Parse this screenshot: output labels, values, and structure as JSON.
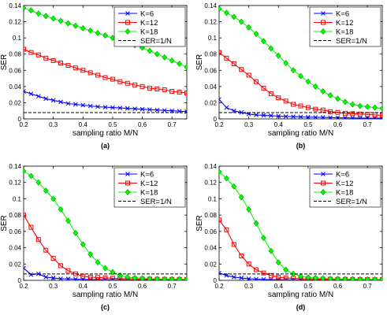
{
  "chart_data": [
    {
      "type": "line",
      "caption": "(a)",
      "xlabel": "sampling ratio M/N",
      "ylabel": "SER",
      "xlim": [
        0.2,
        0.75
      ],
      "ylim": [
        0,
        0.14
      ],
      "xticks": [
        "0.2",
        "0.3",
        "0.4",
        "0.5",
        "0.6",
        "0.7"
      ],
      "yticks": [
        "0",
        "0.02",
        "0.04",
        "0.06",
        "0.08",
        "0.1",
        "0.12",
        "0.14"
      ],
      "legend_position": "top-right",
      "series": [
        {
          "name": "K=6",
          "marker": "x",
          "color": "#0000ff",
          "x": [
            0.2,
            0.225,
            0.25,
            0.275,
            0.3,
            0.325,
            0.35,
            0.375,
            0.4,
            0.425,
            0.45,
            0.475,
            0.5,
            0.525,
            0.55,
            0.575,
            0.6,
            0.625,
            0.65,
            0.675,
            0.7,
            0.725,
            0.75
          ],
          "y": [
            0.034,
            0.031,
            0.028,
            0.025,
            0.023,
            0.021,
            0.019,
            0.018,
            0.017,
            0.016,
            0.015,
            0.0145,
            0.014,
            0.0135,
            0.013,
            0.0125,
            0.012,
            0.0115,
            0.011,
            0.0105,
            0.01,
            0.0095,
            0.009
          ]
        },
        {
          "name": "K=12",
          "marker": "square",
          "color": "#ff0000",
          "x": [
            0.2,
            0.225,
            0.25,
            0.275,
            0.3,
            0.325,
            0.35,
            0.375,
            0.4,
            0.425,
            0.45,
            0.475,
            0.5,
            0.525,
            0.55,
            0.575,
            0.6,
            0.625,
            0.65,
            0.675,
            0.7,
            0.725,
            0.75
          ],
          "y": [
            0.086,
            0.082,
            0.079,
            0.075,
            0.072,
            0.069,
            0.066,
            0.063,
            0.06,
            0.057,
            0.054,
            0.051,
            0.049,
            0.046,
            0.044,
            0.042,
            0.04,
            0.038,
            0.037,
            0.036,
            0.034,
            0.033,
            0.032
          ]
        },
        {
          "name": "K=18",
          "marker": "diamond",
          "color": "#00ff00",
          "x": [
            0.2,
            0.225,
            0.25,
            0.275,
            0.3,
            0.325,
            0.35,
            0.375,
            0.4,
            0.425,
            0.45,
            0.475,
            0.5,
            0.525,
            0.55,
            0.575,
            0.6,
            0.625,
            0.65,
            0.675,
            0.7,
            0.725,
            0.75
          ],
          "y": [
            0.137,
            0.134,
            0.13,
            0.127,
            0.124,
            0.121,
            0.118,
            0.115,
            0.112,
            0.109,
            0.106,
            0.103,
            0.1,
            0.097,
            0.094,
            0.091,
            0.088,
            0.084,
            0.08,
            0.076,
            0.072,
            0.068,
            0.064
          ]
        },
        {
          "name": "SER=1/N",
          "marker": "none",
          "color": "#000000",
          "dashed": true,
          "x": [
            0.2,
            0.75
          ],
          "y": [
            0.0078,
            0.0078
          ]
        }
      ]
    },
    {
      "type": "line",
      "caption": "(b)",
      "xlabel": "sampling ratio M/N",
      "ylabel": "SER",
      "xlim": [
        0.2,
        0.75
      ],
      "ylim": [
        0,
        0.14
      ],
      "xticks": [
        "0.2",
        "0.3",
        "0.4",
        "0.5",
        "0.6",
        "0.7"
      ],
      "yticks": [
        "0",
        "0.02",
        "0.04",
        "0.06",
        "0.08",
        "0.1",
        "0.12",
        "0.14"
      ],
      "legend_position": "top-right",
      "series": [
        {
          "name": "K=6",
          "marker": "x",
          "color": "#0000ff",
          "x": [
            0.2,
            0.225,
            0.25,
            0.275,
            0.3,
            0.325,
            0.35,
            0.375,
            0.4,
            0.425,
            0.45,
            0.475,
            0.5,
            0.525,
            0.55,
            0.575,
            0.6,
            0.625,
            0.65,
            0.675,
            0.7,
            0.725,
            0.75
          ],
          "y": [
            0.024,
            0.014,
            0.01,
            0.008,
            0.006,
            0.005,
            0.0045,
            0.004,
            0.0035,
            0.003,
            0.0028,
            0.0025,
            0.0022,
            0.002,
            0.0018,
            0.0016,
            0.0015,
            0.0013,
            0.0012,
            0.0011,
            0.001,
            0.001,
            0.0009
          ]
        },
        {
          "name": "K=12",
          "marker": "square",
          "color": "#ff0000",
          "x": [
            0.2,
            0.225,
            0.25,
            0.275,
            0.3,
            0.325,
            0.35,
            0.375,
            0.4,
            0.425,
            0.45,
            0.475,
            0.5,
            0.525,
            0.55,
            0.575,
            0.6,
            0.625,
            0.65,
            0.675,
            0.7,
            0.725,
            0.75
          ],
          "y": [
            0.082,
            0.075,
            0.068,
            0.061,
            0.054,
            0.046,
            0.038,
            0.031,
            0.026,
            0.022,
            0.018,
            0.016,
            0.014,
            0.012,
            0.011,
            0.009,
            0.008,
            0.007,
            0.0065,
            0.006,
            0.0055,
            0.005,
            0.0045
          ]
        },
        {
          "name": "K=18",
          "marker": "diamond",
          "color": "#00ff00",
          "x": [
            0.2,
            0.225,
            0.25,
            0.275,
            0.3,
            0.325,
            0.35,
            0.375,
            0.4,
            0.425,
            0.45,
            0.475,
            0.5,
            0.525,
            0.55,
            0.575,
            0.6,
            0.625,
            0.65,
            0.675,
            0.7,
            0.725,
            0.75
          ],
          "y": [
            0.136,
            0.131,
            0.126,
            0.12,
            0.113,
            0.105,
            0.096,
            0.087,
            0.078,
            0.069,
            0.06,
            0.053,
            0.046,
            0.04,
            0.034,
            0.029,
            0.025,
            0.021,
            0.018,
            0.016,
            0.015,
            0.014,
            0.013
          ]
        },
        {
          "name": "SER=1/N",
          "marker": "none",
          "color": "#000000",
          "dashed": true,
          "x": [
            0.2,
            0.75
          ],
          "y": [
            0.0078,
            0.0078
          ]
        }
      ]
    },
    {
      "type": "line",
      "caption": "(c)",
      "xlabel": "sampling ratio M/N",
      "ylabel": "SER",
      "xlim": [
        0.2,
        0.75
      ],
      "ylim": [
        0,
        0.14
      ],
      "xticks": [
        "0.2",
        "0.3",
        "0.4",
        "0.5",
        "0.6",
        "0.7"
      ],
      "yticks": [
        "0",
        "0.02",
        "0.04",
        "0.06",
        "0.08",
        "0.1",
        "0.12",
        "0.14"
      ],
      "legend_position": "top-right",
      "series": [
        {
          "name": "K=6",
          "marker": "x",
          "color": "#0000ff",
          "x": [
            0.2,
            0.225,
            0.25,
            0.275,
            0.3,
            0.325,
            0.35,
            0.375,
            0.4,
            0.425,
            0.45,
            0.475,
            0.5,
            0.525,
            0.55,
            0.575,
            0.6,
            0.625,
            0.65,
            0.675,
            0.7,
            0.725,
            0.75
          ],
          "y": [
            0.015,
            0.007,
            0.008,
            0.004,
            0.003,
            0.002,
            0.0018,
            0.0015,
            0.0012,
            0.001,
            0.0009,
            0.0008,
            0.0007,
            0.0006,
            0.0005,
            0.0005,
            0.0004,
            0.0004,
            0.0003,
            0.0003,
            0.0003,
            0.0002,
            0.0002
          ]
        },
        {
          "name": "K=12",
          "marker": "square",
          "color": "#ff0000",
          "x": [
            0.2,
            0.225,
            0.25,
            0.275,
            0.3,
            0.325,
            0.35,
            0.375,
            0.4,
            0.425,
            0.45,
            0.475,
            0.5,
            0.525,
            0.55,
            0.575,
            0.6,
            0.625,
            0.65,
            0.675,
            0.7,
            0.725,
            0.75
          ],
          "y": [
            0.08,
            0.065,
            0.05,
            0.037,
            0.027,
            0.018,
            0.012,
            0.008,
            0.005,
            0.004,
            0.0035,
            0.003,
            0.0025,
            0.002,
            0.002,
            0.0018,
            0.0016,
            0.0015,
            0.0014,
            0.0013,
            0.0012,
            0.0012,
            0.0011
          ]
        },
        {
          "name": "K=18",
          "marker": "diamond",
          "color": "#00ff00",
          "x": [
            0.2,
            0.225,
            0.25,
            0.275,
            0.3,
            0.325,
            0.35,
            0.375,
            0.4,
            0.425,
            0.45,
            0.475,
            0.5,
            0.525,
            0.55,
            0.575,
            0.6,
            0.625,
            0.65,
            0.675,
            0.7,
            0.725,
            0.75
          ],
          "y": [
            0.134,
            0.128,
            0.12,
            0.11,
            0.1,
            0.087,
            0.073,
            0.058,
            0.044,
            0.032,
            0.022,
            0.015,
            0.01,
            0.006,
            0.004,
            0.003,
            0.0025,
            0.002,
            0.0018,
            0.0016,
            0.0015,
            0.0014,
            0.0013
          ]
        },
        {
          "name": "SER=1/N",
          "marker": "none",
          "color": "#000000",
          "dashed": true,
          "x": [
            0.2,
            0.75
          ],
          "y": [
            0.0078,
            0.0078
          ]
        }
      ]
    },
    {
      "type": "line",
      "caption": "(d)",
      "xlabel": "sampling ratio M/N",
      "ylabel": "SER",
      "xlim": [
        0.2,
        0.75
      ],
      "ylim": [
        0,
        0.14
      ],
      "xticks": [
        "0.2",
        "0.3",
        "0.4",
        "0.5",
        "0.6",
        "0.7"
      ],
      "yticks": [
        "0",
        "0.02",
        "0.04",
        "0.06",
        "0.08",
        "0.1",
        "0.12",
        "0.14"
      ],
      "legend_position": "top-right",
      "series": [
        {
          "name": "K=6",
          "marker": "x",
          "color": "#0000ff",
          "x": [
            0.2,
            0.225,
            0.25,
            0.275,
            0.3,
            0.325,
            0.35,
            0.375,
            0.4,
            0.425,
            0.45,
            0.475,
            0.5,
            0.525,
            0.55,
            0.575,
            0.6,
            0.625,
            0.65,
            0.675,
            0.7,
            0.725,
            0.75
          ],
          "y": [
            0.009,
            0.006,
            0.004,
            0.003,
            0.002,
            0.0015,
            0.0012,
            0.001,
            0.0008,
            0.0007,
            0.0006,
            0.0005,
            0.0004,
            0.0004,
            0.0003,
            0.0003,
            0.0002,
            0.0002,
            0.0002,
            0.0002,
            0.0001,
            0.0001,
            0.0001
          ]
        },
        {
          "name": "K=12",
          "marker": "square",
          "color": "#ff0000",
          "x": [
            0.2,
            0.225,
            0.25,
            0.275,
            0.3,
            0.325,
            0.35,
            0.375,
            0.4,
            0.425,
            0.45,
            0.475,
            0.5,
            0.525,
            0.55,
            0.575,
            0.6,
            0.625,
            0.65,
            0.675,
            0.7,
            0.725,
            0.75
          ],
          "y": [
            0.074,
            0.062,
            0.044,
            0.03,
            0.02,
            0.013,
            0.009,
            0.006,
            0.004,
            0.003,
            0.0025,
            0.002,
            0.0018,
            0.0016,
            0.0015,
            0.0014,
            0.0013,
            0.0012,
            0.0011,
            0.001,
            0.001,
            0.0009,
            0.0009
          ]
        },
        {
          "name": "K=18",
          "marker": "diamond",
          "color": "#00ff00",
          "x": [
            0.2,
            0.225,
            0.25,
            0.275,
            0.3,
            0.325,
            0.35,
            0.375,
            0.4,
            0.425,
            0.45,
            0.475,
            0.5,
            0.525,
            0.55,
            0.575,
            0.6,
            0.625,
            0.65,
            0.675,
            0.7,
            0.725,
            0.75
          ],
          "y": [
            0.133,
            0.125,
            0.115,
            0.102,
            0.087,
            0.07,
            0.052,
            0.036,
            0.022,
            0.013,
            0.008,
            0.005,
            0.0035,
            0.003,
            0.0025,
            0.002,
            0.0018,
            0.0016,
            0.0015,
            0.0014,
            0.0013,
            0.0012,
            0.0012
          ]
        },
        {
          "name": "SER=1/N",
          "marker": "none",
          "color": "#000000",
          "dashed": true,
          "x": [
            0.2,
            0.75
          ],
          "y": [
            0.0078,
            0.0078
          ]
        }
      ]
    }
  ]
}
